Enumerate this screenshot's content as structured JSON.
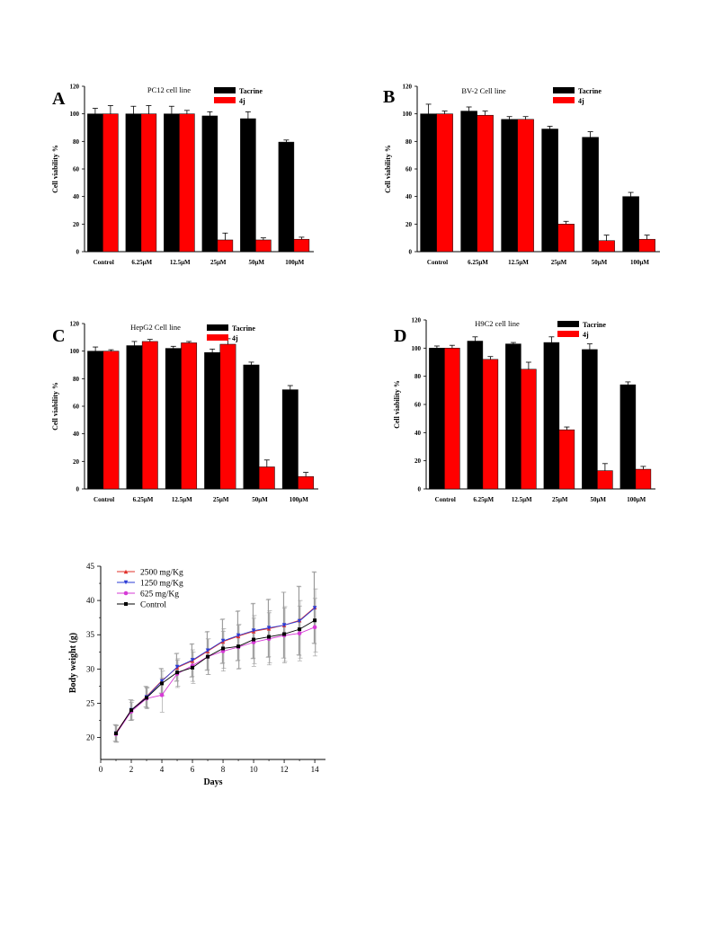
{
  "chart_data": [
    {
      "type": "bar",
      "panel_label": "A",
      "title": "PC12 cell line",
      "ylabel": "Cell viability %",
      "ylim": [
        0,
        120
      ],
      "yticks": [
        "0",
        "20",
        "40",
        "60",
        "80",
        "100",
        "120"
      ],
      "categories": [
        "Control",
        "6.25μM",
        "12.5μM",
        "25μM",
        "50μM",
        "100μM"
      ],
      "legend_position": "top-right",
      "series": [
        {
          "name": "Tacrine",
          "color": "#000000",
          "values": [
            100,
            100,
            100,
            98.5,
            96.5,
            79.5
          ],
          "errors": [
            4,
            5.5,
            5.5,
            3,
            5,
            1.5
          ]
        },
        {
          "name": "4j",
          "color": "#ff0000",
          "values": [
            100,
            100,
            100,
            8.5,
            8.5,
            9
          ],
          "errors": [
            6,
            6,
            2.5,
            5,
            1.5,
            1.5
          ]
        }
      ]
    },
    {
      "type": "bar",
      "panel_label": "B",
      "title": "BV-2 Cell line",
      "ylabel": "Cell viability %",
      "ylim": [
        0,
        120
      ],
      "yticks": [
        "0",
        "20",
        "40",
        "60",
        "80",
        "100",
        "120"
      ],
      "categories": [
        "Control",
        "6.25μM",
        "12.5μM",
        "25μM",
        "50μM",
        "100μM"
      ],
      "legend_position": "top-right",
      "series": [
        {
          "name": "Tacrine",
          "color": "#000000",
          "values": [
            100,
            102,
            96,
            89,
            83,
            40
          ],
          "errors": [
            7,
            3,
            2,
            2,
            4,
            3
          ]
        },
        {
          "name": "4j",
          "color": "#ff0000",
          "values": [
            100,
            99,
            96,
            20,
            8,
            9
          ],
          "errors": [
            2,
            3,
            2,
            2,
            4,
            3
          ]
        }
      ]
    },
    {
      "type": "bar",
      "panel_label": "C",
      "title": "HepG2 Cell line",
      "ylabel": "Cell viability %",
      "ylim": [
        0,
        120
      ],
      "yticks": [
        "0",
        "20",
        "40",
        "60",
        "80",
        "100",
        "120"
      ],
      "categories": [
        "Control",
        "6.25μM",
        "12.5μM",
        "25μM",
        "50μM",
        "100μM"
      ],
      "legend_position": "top-right",
      "series": [
        {
          "name": "Tacrine",
          "color": "#000000",
          "values": [
            100,
            104,
            102,
            99,
            90,
            72
          ],
          "errors": [
            3,
            3,
            1.5,
            2.5,
            2,
            3
          ]
        },
        {
          "name": "4j",
          "color": "#ff0000",
          "values": [
            100,
            107,
            106,
            105,
            16,
            9
          ],
          "errors": [
            1,
            1.5,
            1,
            4,
            5,
            3
          ]
        }
      ]
    },
    {
      "type": "bar",
      "panel_label": "D",
      "title": "H9C2 cell line",
      "ylabel": "Cell viability %",
      "ylim": [
        0,
        120
      ],
      "yticks": [
        "0",
        "20",
        "40",
        "60",
        "80",
        "100",
        "120"
      ],
      "categories": [
        "Control",
        "6.25μM",
        "12.5μM",
        "25μM",
        "50μM",
        "100μM"
      ],
      "legend_position": "top-right",
      "series": [
        {
          "name": "Tacrine",
          "color": "#000000",
          "values": [
            100,
            105,
            103,
            104,
            99,
            74
          ],
          "errors": [
            1.5,
            3,
            1,
            4,
            4,
            2
          ]
        },
        {
          "name": "4j",
          "color": "#ff0000",
          "values": [
            100,
            92,
            85,
            42,
            13,
            14
          ],
          "errors": [
            2,
            2,
            5,
            2,
            5,
            2
          ]
        }
      ]
    },
    {
      "type": "line",
      "title": "",
      "xlabel": "Days",
      "ylabel": "Body weight (g)",
      "xlim": [
        0,
        14.7
      ],
      "ylim": [
        16.8,
        45
      ],
      "xticks": [
        "0",
        "2",
        "4",
        "6",
        "8",
        "10",
        "12",
        "14"
      ],
      "yticks": [
        "20",
        "25",
        "30",
        "35",
        "40",
        "45"
      ],
      "x": [
        1,
        2,
        3,
        4,
        5,
        6,
        7,
        8,
        9,
        10,
        11,
        12,
        13,
        14
      ],
      "legend_position": "top-left",
      "series": [
        {
          "name": "2500 mg/Kg",
          "color": "#e0302a",
          "marker": "triangle-up",
          "values": [
            20.7,
            24.0,
            26.0,
            28.3,
            30.2,
            31.2,
            32.6,
            34.0,
            34.8,
            35.5,
            35.9,
            36.4,
            37.1,
            39.0
          ],
          "errors": [
            1.2,
            1.5,
            1.5,
            1.8,
            2.0,
            2.4,
            2.8,
            3.2,
            3.6,
            4.0,
            4.2,
            4.8,
            5.0,
            5.2
          ]
        },
        {
          "name": "1250 mg/Kg",
          "color": "#2a3bd6",
          "marker": "triangle-down",
          "values": [
            20.6,
            24.0,
            25.9,
            28.2,
            30.3,
            31.3,
            32.7,
            34.1,
            34.9,
            35.6,
            36.0,
            36.4,
            37.0,
            38.9
          ],
          "errors": [
            1.2,
            1.5,
            1.5,
            1.8,
            2.0,
            2.4,
            2.8,
            3.2,
            3.6,
            4.0,
            4.2,
            4.8,
            5.0,
            5.2
          ]
        },
        {
          "name": "625 mg/Kg",
          "color": "#d63ad6",
          "marker": "circle",
          "values": [
            20.5,
            23.8,
            25.7,
            26.2,
            29.3,
            30.5,
            31.8,
            32.6,
            33.2,
            33.9,
            34.4,
            34.9,
            35.2,
            36.1
          ],
          "errors": [
            1.2,
            1.3,
            1.5,
            2.5,
            2.0,
            2.3,
            2.6,
            2.9,
            3.2,
            3.5,
            3.8,
            4.0,
            4.0,
            4.2
          ]
        },
        {
          "name": "Control",
          "color": "#000000",
          "marker": "square",
          "values": [
            20.6,
            24.0,
            25.8,
            27.9,
            29.5,
            30.2,
            31.8,
            33.0,
            33.3,
            34.3,
            34.7,
            35.1,
            35.8,
            37.1
          ],
          "errors": [
            1.2,
            1.4,
            1.5,
            1.8,
            2.0,
            2.3,
            2.6,
            2.9,
            3.2,
            3.5,
            3.8,
            4.0,
            4.2,
            4.6
          ]
        }
      ]
    }
  ]
}
